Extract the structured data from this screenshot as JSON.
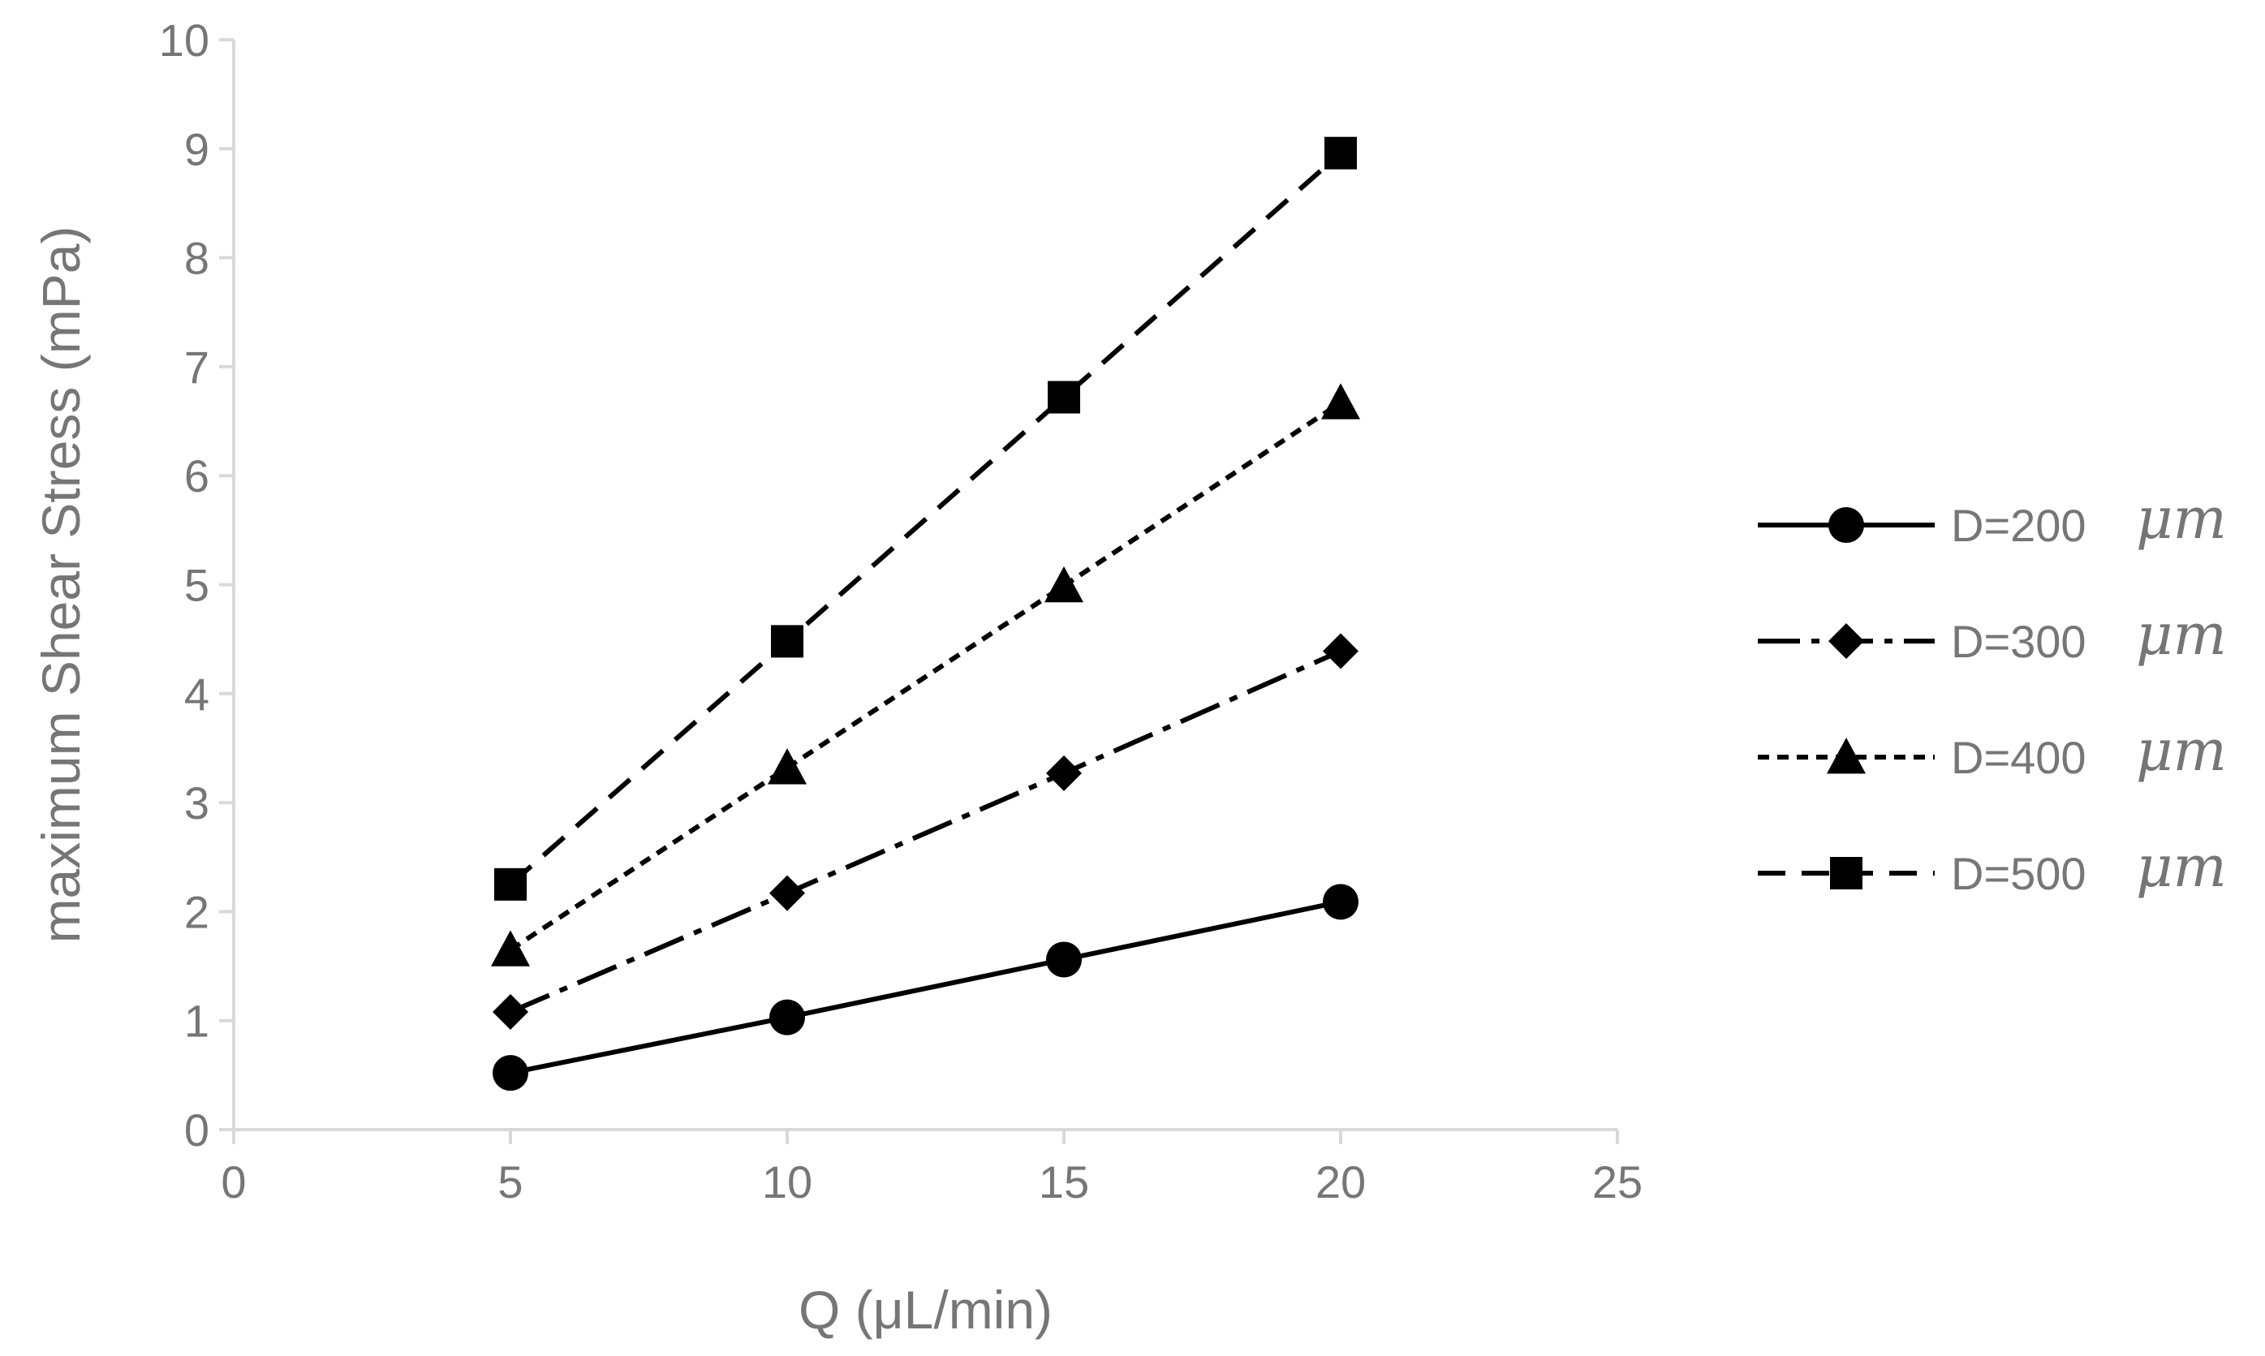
{
  "chart_data": {
    "type": "line",
    "title": "",
    "xlabel": "Q (μL/min)",
    "ylabel": "maximum Shear Stress (mPa)",
    "xlim": [
      0,
      25
    ],
    "ylim": [
      0,
      10
    ],
    "xticks": [
      "0",
      "5",
      "10",
      "15",
      "20",
      "25"
    ],
    "yticks": [
      "0",
      "1",
      "2",
      "3",
      "4",
      "5",
      "6",
      "7",
      "8",
      "9",
      "10"
    ],
    "grid": false,
    "legend_position": "right",
    "x": [
      5,
      10,
      15,
      20
    ],
    "series": [
      {
        "name": "D=200",
        "unit": "μm",
        "marker": "circle",
        "dash": "solid",
        "values": [
          0.52,
          1.03,
          1.56,
          2.09
        ]
      },
      {
        "name": "D=300",
        "unit": "μm",
        "marker": "diamond",
        "dash": "dash-dot",
        "values": [
          1.08,
          2.17,
          3.27,
          4.39
        ]
      },
      {
        "name": "D=400",
        "unit": "μm",
        "marker": "triangle",
        "dash": "dotted",
        "values": [
          1.65,
          3.32,
          4.99,
          6.67
        ]
      },
      {
        "name": "D=500",
        "unit": "μm",
        "marker": "square",
        "dash": "dashed",
        "values": [
          2.25,
          4.48,
          6.72,
          8.96
        ]
      }
    ],
    "colors": {
      "line": "#000000",
      "axis": "#d9d9d9",
      "text": "#767676"
    }
  }
}
